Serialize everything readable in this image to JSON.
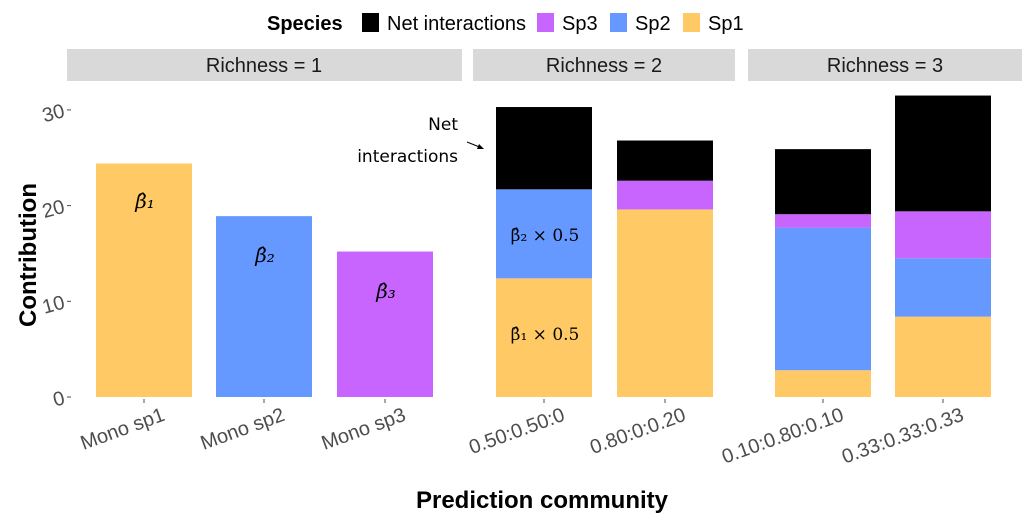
{
  "chart_data": {
    "type": "bar",
    "stacked": true,
    "xlabel": "Prediction community",
    "ylabel": "Contribution",
    "ylim": [
      0,
      31.5
    ],
    "yticks": [
      0,
      10,
      20,
      30
    ],
    "grid": false,
    "legend": {
      "title": "Species",
      "placement": "top",
      "entries": [
        {
          "name": "Net interactions",
          "color": "#000000"
        },
        {
          "name": "Sp3",
          "color": "#c965ff"
        },
        {
          "name": "Sp2",
          "color": "#6599ff"
        },
        {
          "name": "Sp1",
          "color": "#ffc965"
        }
      ]
    },
    "facets": [
      {
        "label": "Richness = 1",
        "categories": [
          "Mono sp1",
          "Mono sp2",
          "Mono sp3"
        ],
        "series": [
          {
            "name": "Sp1",
            "values": [
              24.4,
              0,
              0
            ]
          },
          {
            "name": "Sp2",
            "values": [
              0,
              18.9,
              0
            ]
          },
          {
            "name": "Sp3",
            "values": [
              0,
              0,
              15.2
            ]
          },
          {
            "name": "Net interactions",
            "values": [
              0,
              0,
              0
            ]
          }
        ],
        "annotations": [
          "β̂₁",
          "β̂₂",
          "β̂₃"
        ]
      },
      {
        "label": "Richness = 2",
        "categories": [
          "0.50:0.50:0",
          "0.80:0:0.20"
        ],
        "series": [
          {
            "name": "Sp1",
            "values": [
              12.4,
              19.6
            ]
          },
          {
            "name": "Sp2",
            "values": [
              9.3,
              0
            ]
          },
          {
            "name": "Sp3",
            "values": [
              0,
              3.0
            ]
          },
          {
            "name": "Net interactions",
            "values": [
              8.6,
              4.2
            ]
          }
        ],
        "annotations": [
          "β̂₁ × 0.5",
          "β̂₂ × 0.5"
        ],
        "callout": [
          "Net",
          "interactions"
        ]
      },
      {
        "label": "Richness = 3",
        "categories": [
          "0.10:0.80:0.10",
          "0.33:0.33:0.33"
        ],
        "series": [
          {
            "name": "Sp1",
            "values": [
              2.8,
              8.4
            ]
          },
          {
            "name": "Sp2",
            "values": [
              14.9,
              6.1
            ]
          },
          {
            "name": "Sp3",
            "values": [
              1.4,
              4.9
            ]
          },
          {
            "name": "Net interactions",
            "values": [
              6.8,
              12.1
            ]
          }
        ]
      }
    ]
  }
}
